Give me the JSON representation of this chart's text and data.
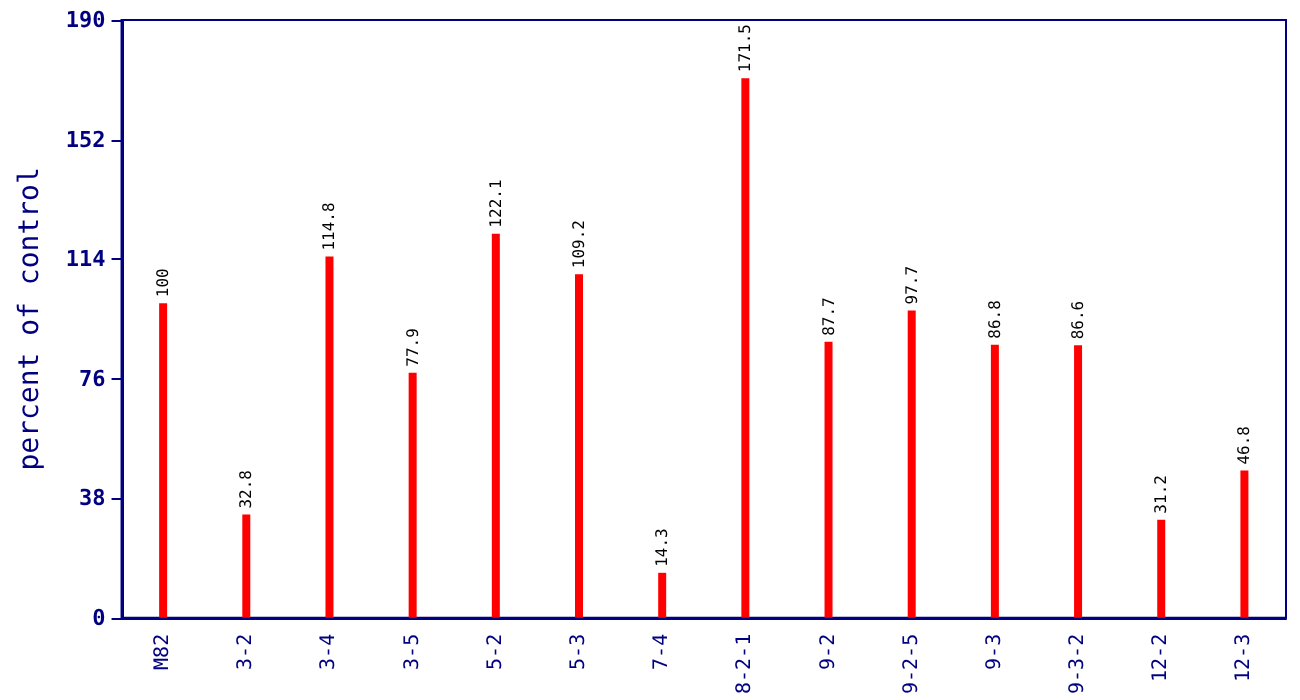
{
  "chart_data": {
    "type": "bar",
    "ylabel": "percent of control",
    "categories": [
      "M82",
      "3-2",
      "3-4",
      "3-5",
      "5-2",
      "5-3",
      "7-4",
      "8-2-1",
      "9-2",
      "9-2-5",
      "9-3",
      "9-3-2",
      "12-2",
      "12-3"
    ],
    "values": [
      100,
      32.8,
      114.8,
      77.9,
      122.1,
      109.2,
      14.3,
      171.5,
      87.7,
      97.7,
      86.8,
      86.6,
      31.2,
      46.8
    ],
    "color": "#ff0000",
    "ylim": [
      0,
      190
    ],
    "yticks": [
      0,
      38,
      76,
      114,
      152,
      190
    ],
    "grid": false,
    "data_labels": true
  }
}
